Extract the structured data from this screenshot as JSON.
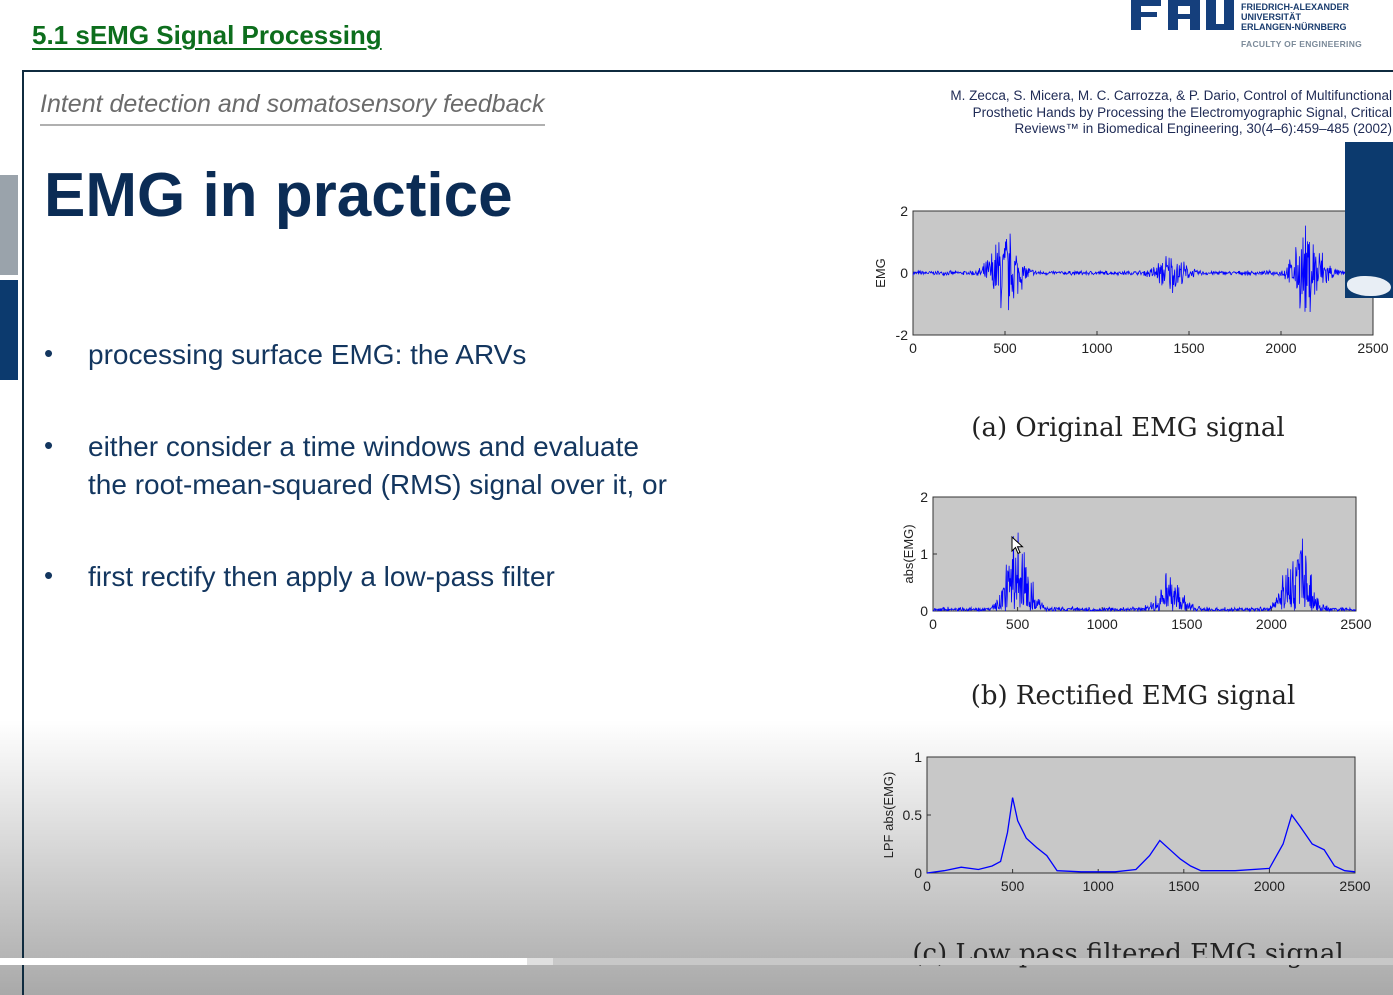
{
  "header": {
    "section_title": "5.1 sEMG Signal Processing",
    "logo_mark": "FAU",
    "logo_lines": [
      "FRIEDRICH-ALEXANDER",
      "UNIVERSITÄT",
      "ERLANGEN-NÜRNBERG"
    ],
    "faculty": "FACULTY OF ENGINEERING"
  },
  "slide": {
    "subtitle": "Intent detection and somatosensory feedback",
    "title": "EMG in practice",
    "bullets": [
      {
        "lines": [
          "processing surface EMG: the ARVs"
        ]
      },
      {
        "lines": [
          "either consider a time windows and evaluate",
          "the root-mean-squared (RMS) signal over it, or"
        ]
      },
      {
        "lines": [
          "first rectify then apply a low-pass filter"
        ]
      }
    ],
    "bullet_symbol": "•",
    "citation_lines": [
      "M. Zecca, S. Micera, M. C. Carrozza, & P. Dario, Control of Multifunctional",
      "Prosthetic Hands by Processing the Electromyographic Signal, Critical",
      "Reviews™ in Biomedical Engineering, 30(4–6):459–485 (2002)"
    ]
  },
  "colors": {
    "section_title": "#0d6e1d",
    "title": "#0b2c55",
    "signal": "#0000ff",
    "plot_bg": "#c8c8c8"
  },
  "video": {
    "progress_fraction": 0.378,
    "buffered_fraction": 0.397
  },
  "chart_data": [
    {
      "type": "line",
      "caption": "(a) Original EMG signal",
      "ylabel": "EMG",
      "xlim": [
        0,
        2500
      ],
      "ylim": [
        -2,
        2
      ],
      "xticks": [
        "0",
        "500",
        "1000",
        "1500",
        "2000",
        "2500"
      ],
      "yticks": [
        "-2",
        "0",
        "2"
      ],
      "bursts": [
        {
          "center": 500,
          "amp": 1.65
        },
        {
          "center": 1400,
          "amp": 0.7
        },
        {
          "center": 2150,
          "amp": 1.75
        }
      ],
      "baseline_amp": 0.08
    },
    {
      "type": "line",
      "caption": "(b) Rectified EMG signal",
      "ylabel": "abs(EMG)",
      "xlim": [
        0,
        2500
      ],
      "ylim": [
        0,
        2
      ],
      "xticks": [
        "0",
        "500",
        "1000",
        "1500",
        "2000",
        "2500"
      ],
      "yticks": [
        "0",
        "1",
        "2"
      ],
      "bursts": [
        {
          "center": 500,
          "amp": 1.7
        },
        {
          "center": 1400,
          "amp": 0.75
        },
        {
          "center": 2150,
          "amp": 1.7
        }
      ],
      "baseline_amp": 0.08
    },
    {
      "type": "line",
      "caption": "(c) Low pass filtered EMG signal",
      "ylabel": "LPF abs(EMG)",
      "xlim": [
        0,
        2500
      ],
      "ylim": [
        0,
        1
      ],
      "xticks": [
        "0",
        "500",
        "1000",
        "1500",
        "2000",
        "2500"
      ],
      "yticks": [
        "0",
        "0.5",
        "1"
      ],
      "points": [
        [
          0,
          0.0
        ],
        [
          100,
          0.02
        ],
        [
          200,
          0.05
        ],
        [
          300,
          0.03
        ],
        [
          380,
          0.06
        ],
        [
          430,
          0.1
        ],
        [
          470,
          0.35
        ],
        [
          500,
          0.65
        ],
        [
          530,
          0.45
        ],
        [
          580,
          0.3
        ],
        [
          640,
          0.22
        ],
        [
          700,
          0.15
        ],
        [
          760,
          0.02
        ],
        [
          900,
          0.01
        ],
        [
          1100,
          0.01
        ],
        [
          1220,
          0.03
        ],
        [
          1300,
          0.15
        ],
        [
          1360,
          0.28
        ],
        [
          1420,
          0.2
        ],
        [
          1480,
          0.12
        ],
        [
          1540,
          0.06
        ],
        [
          1600,
          0.02
        ],
        [
          1800,
          0.02
        ],
        [
          2000,
          0.04
        ],
        [
          2080,
          0.25
        ],
        [
          2130,
          0.5
        ],
        [
          2180,
          0.4
        ],
        [
          2250,
          0.25
        ],
        [
          2320,
          0.2
        ],
        [
          2380,
          0.06
        ],
        [
          2440,
          0.02
        ],
        [
          2500,
          0.01
        ]
      ]
    }
  ]
}
